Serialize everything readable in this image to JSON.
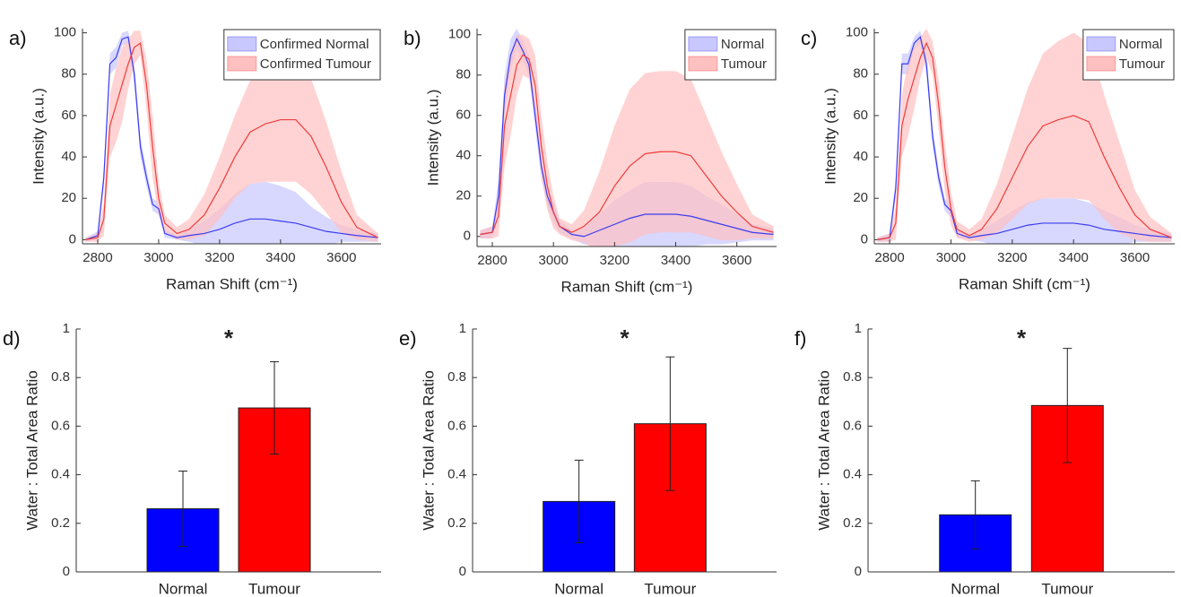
{
  "chart_data": [
    {
      "type": "line",
      "panel_label": "a)",
      "xlabel": "Raman Shift (cm⁻¹)",
      "ylabel": "Intensity (a.u.)",
      "legend": "upper right",
      "xlim": [
        2750,
        3730
      ],
      "ylim": [
        -2,
        102
      ],
      "xticks": [
        2800,
        3000,
        3200,
        3400,
        3600
      ],
      "yticks": [
        0,
        20,
        40,
        60,
        80,
        100
      ],
      "x": [
        2760,
        2800,
        2820,
        2840,
        2860,
        2880,
        2900,
        2920,
        2940,
        2960,
        2980,
        3000,
        3020,
        3060,
        3100,
        3150,
        3200,
        3250,
        3300,
        3350,
        3400,
        3450,
        3500,
        3550,
        3600,
        3650,
        3720
      ],
      "series": [
        {
          "name": "Confirmed Normal",
          "color": "#3c3cf0",
          "band_color": "#c8c8ff",
          "values": [
            0,
            2,
            30,
            85,
            88,
            97,
            98,
            80,
            45,
            30,
            17,
            15,
            3,
            1,
            2,
            3,
            5,
            8,
            10,
            10,
            9,
            8,
            6,
            4,
            3,
            2,
            1
          ],
          "error": [
            1,
            2,
            5,
            5,
            5,
            3,
            3,
            5,
            5,
            4,
            3,
            3,
            2,
            1,
            3,
            6,
            10,
            14,
            17,
            18,
            17,
            15,
            10,
            7,
            4,
            3,
            2
          ]
        },
        {
          "name": "Confirmed Tumour",
          "color": "#f03c3c",
          "band_color": "#ffc0c0",
          "values": [
            0,
            1,
            10,
            55,
            65,
            75,
            85,
            93,
            95,
            75,
            45,
            20,
            8,
            3,
            5,
            12,
            25,
            40,
            52,
            56,
            58,
            58,
            50,
            35,
            18,
            6,
            1
          ],
          "error": [
            1,
            2,
            8,
            15,
            18,
            18,
            12,
            8,
            6,
            12,
            15,
            8,
            4,
            3,
            5,
            10,
            15,
            20,
            25,
            28,
            30,
            30,
            28,
            22,
            15,
            6,
            2
          ]
        }
      ]
    },
    {
      "type": "line",
      "panel_label": "b)",
      "xlabel": "Raman Shift (cm⁻¹)",
      "ylabel": "Intensity (a.u.)",
      "legend": "upper right",
      "xlim": [
        2750,
        3730
      ],
      "ylim": [
        -5,
        103
      ],
      "xticks": [
        2800,
        3000,
        3200,
        3400,
        3600
      ],
      "yticks": [
        0,
        20,
        40,
        60,
        80,
        100
      ],
      "x": [
        2760,
        2800,
        2820,
        2840,
        2860,
        2880,
        2900,
        2920,
        2940,
        2960,
        2980,
        3000,
        3020,
        3060,
        3100,
        3150,
        3200,
        3250,
        3300,
        3350,
        3400,
        3450,
        3500,
        3550,
        3600,
        3650,
        3720
      ],
      "series": [
        {
          "name": "Normal",
          "color": "#3c3cf0",
          "band_color": "#c8c8ff",
          "values": [
            1,
            2,
            20,
            70,
            90,
            98,
            92,
            85,
            60,
            35,
            20,
            12,
            5,
            1,
            0,
            3,
            6,
            9,
            11,
            11,
            11,
            10,
            8,
            6,
            4,
            2,
            1
          ],
          "error": [
            2,
            3,
            8,
            10,
            8,
            5,
            5,
            5,
            6,
            6,
            5,
            5,
            3,
            2,
            4,
            8,
            12,
            14,
            16,
            16,
            16,
            15,
            12,
            10,
            7,
            4,
            3
          ]
        },
        {
          "name": "Tumour",
          "color": "#f03c3c",
          "band_color": "#ffc0c0",
          "values": [
            1,
            2,
            10,
            55,
            70,
            85,
            90,
            88,
            75,
            45,
            25,
            12,
            5,
            2,
            5,
            12,
            25,
            35,
            41,
            42,
            42,
            40,
            30,
            20,
            12,
            5,
            2
          ],
          "error": [
            2,
            3,
            10,
            20,
            20,
            15,
            10,
            10,
            15,
            15,
            12,
            8,
            4,
            4,
            8,
            20,
            30,
            38,
            40,
            40,
            40,
            38,
            30,
            22,
            14,
            6,
            3
          ]
        }
      ]
    },
    {
      "type": "line",
      "panel_label": "c)",
      "xlabel": "Raman Shift (cm⁻¹)",
      "ylabel": "Intensity (a.u.)",
      "legend": "upper right",
      "xlim": [
        2750,
        3730
      ],
      "ylim": [
        -2,
        102
      ],
      "xticks": [
        2800,
        3000,
        3200,
        3400,
        3600
      ],
      "yticks": [
        0,
        20,
        40,
        60,
        80,
        100
      ],
      "x": [
        2760,
        2800,
        2820,
        2840,
        2860,
        2880,
        2900,
        2920,
        2940,
        2960,
        2980,
        3000,
        3020,
        3060,
        3100,
        3150,
        3200,
        3250,
        3300,
        3350,
        3400,
        3450,
        3500,
        3550,
        3600,
        3650,
        3720
      ],
      "series": [
        {
          "name": "Normal",
          "color": "#3c3cf0",
          "band_color": "#c8c8ff",
          "values": [
            0,
            1,
            25,
            85,
            85,
            95,
            98,
            85,
            50,
            30,
            17,
            14,
            3,
            1,
            2,
            3,
            5,
            7,
            8,
            8,
            8,
            7,
            5,
            4,
            3,
            2,
            1
          ],
          "error": [
            1,
            2,
            5,
            5,
            5,
            3,
            3,
            5,
            5,
            4,
            3,
            3,
            2,
            1,
            3,
            6,
            9,
            11,
            12,
            12,
            12,
            11,
            9,
            7,
            4,
            3,
            2
          ]
        },
        {
          "name": "Tumour",
          "color": "#f03c3c",
          "band_color": "#ffc0c0",
          "values": [
            0,
            1,
            8,
            55,
            68,
            78,
            88,
            95,
            88,
            65,
            35,
            15,
            5,
            2,
            5,
            15,
            30,
            45,
            55,
            58,
            60,
            57,
            40,
            25,
            12,
            5,
            1
          ],
          "error": [
            1,
            2,
            8,
            15,
            18,
            15,
            10,
            7,
            8,
            12,
            12,
            8,
            4,
            3,
            5,
            12,
            20,
            28,
            35,
            38,
            40,
            38,
            30,
            22,
            12,
            6,
            2
          ]
        }
      ]
    },
    {
      "type": "bar",
      "panel_label": "d)",
      "ylabel": "Water : Total Area Ratio",
      "annotation": "*",
      "categories": [
        "Normal",
        "Tumour"
      ],
      "values": [
        0.26,
        0.675
      ],
      "error": [
        0.155,
        0.19
      ],
      "colors": [
        "#0000ff",
        "#ff0000"
      ],
      "ylim": [
        0,
        1
      ],
      "yticks": [
        0,
        0.2,
        0.4,
        0.6,
        0.8,
        1
      ]
    },
    {
      "type": "bar",
      "panel_label": "e)",
      "ylabel": "Water : Total Area Ratio",
      "annotation": "*",
      "categories": [
        "Normal",
        "Tumour"
      ],
      "values": [
        0.29,
        0.61
      ],
      "error": [
        0.17,
        0.275
      ],
      "colors": [
        "#0000ff",
        "#ff0000"
      ],
      "ylim": [
        0,
        1
      ],
      "yticks": [
        0,
        0.2,
        0.4,
        0.6,
        0.8,
        1
      ]
    },
    {
      "type": "bar",
      "panel_label": "f)",
      "ylabel": "Water : Total Area Ratio",
      "annotation": "*",
      "categories": [
        "Normal",
        "Tumour"
      ],
      "values": [
        0.235,
        0.685
      ],
      "error": [
        0.14,
        0.235
      ],
      "colors": [
        "#0000ff",
        "#ff0000"
      ],
      "ylim": [
        0,
        1
      ],
      "yticks": [
        0,
        0.2,
        0.4,
        0.6,
        0.8,
        1
      ]
    }
  ]
}
